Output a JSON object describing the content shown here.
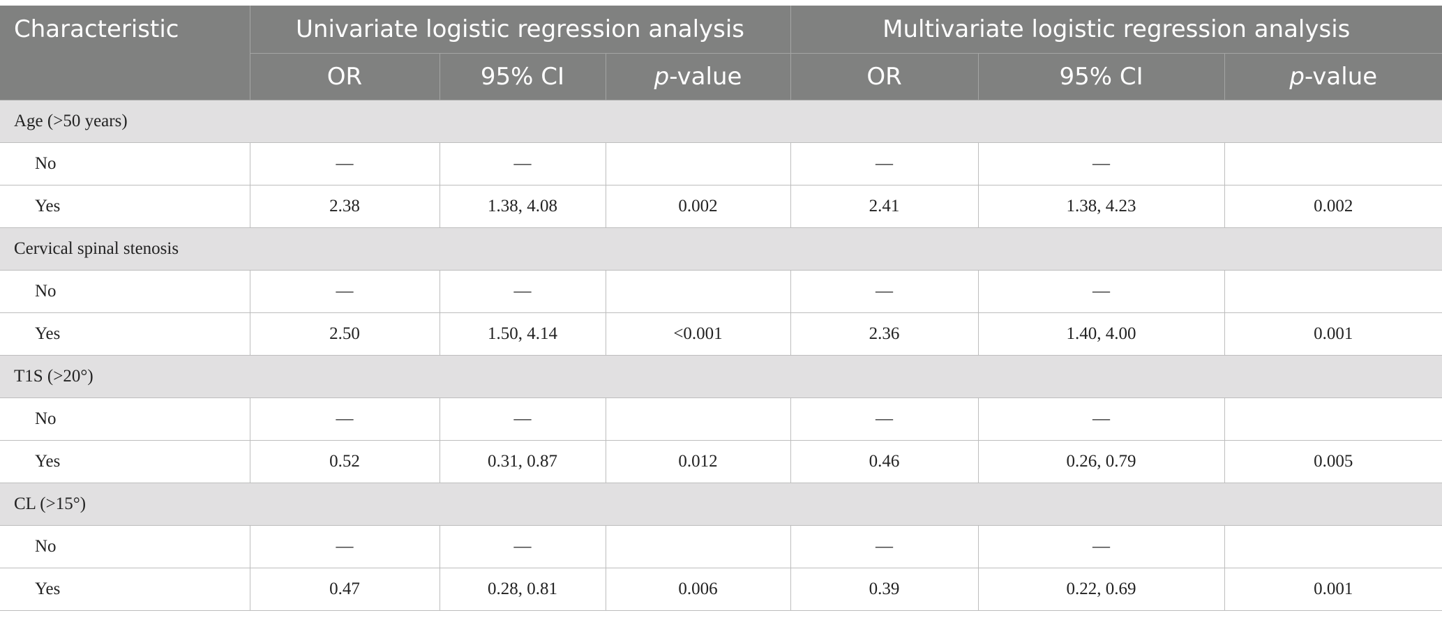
{
  "header": {
    "characteristic": "Characteristic",
    "univariate": "Univariate logistic regression analysis",
    "multivariate": "Multivariate logistic regression analysis",
    "or": "OR",
    "ci": "95% CI",
    "p_italic": "p",
    "p_suffix": "-value"
  },
  "groups": [
    {
      "title": "Age (>50 years)",
      "no": {
        "label": "No",
        "u_or": "—",
        "u_ci": "—",
        "u_p": "",
        "m_or": "—",
        "m_ci": "—",
        "m_p": ""
      },
      "yes": {
        "label": "Yes",
        "u_or": "2.38",
        "u_ci": "1.38, 4.08",
        "u_p": "0.002",
        "m_or": "2.41",
        "m_ci": "1.38, 4.23",
        "m_p": "0.002"
      }
    },
    {
      "title": "Cervical spinal stenosis",
      "no": {
        "label": "No",
        "u_or": "—",
        "u_ci": "—",
        "u_p": "",
        "m_or": "—",
        "m_ci": "—",
        "m_p": ""
      },
      "yes": {
        "label": "Yes",
        "u_or": "2.50",
        "u_ci": "1.50, 4.14",
        "u_p": "<0.001",
        "m_or": "2.36",
        "m_ci": "1.40, 4.00",
        "m_p": "0.001"
      }
    },
    {
      "title": "T1S (>20°)",
      "no": {
        "label": "No",
        "u_or": "—",
        "u_ci": "—",
        "u_p": "",
        "m_or": "—",
        "m_ci": "—",
        "m_p": ""
      },
      "yes": {
        "label": "Yes",
        "u_or": "0.52",
        "u_ci": "0.31, 0.87",
        "u_p": "0.012",
        "m_or": "0.46",
        "m_ci": "0.26, 0.79",
        "m_p": "0.005"
      }
    },
    {
      "title": "CL (>15°)",
      "no": {
        "label": "No",
        "u_or": "—",
        "u_ci": "—",
        "u_p": "",
        "m_or": "—",
        "m_ci": "—",
        "m_p": ""
      },
      "yes": {
        "label": "Yes",
        "u_or": "0.47",
        "u_ci": "0.28, 0.81",
        "u_p": "0.006",
        "m_or": "0.39",
        "m_ci": "0.22, 0.69",
        "m_p": "0.001"
      }
    }
  ]
}
